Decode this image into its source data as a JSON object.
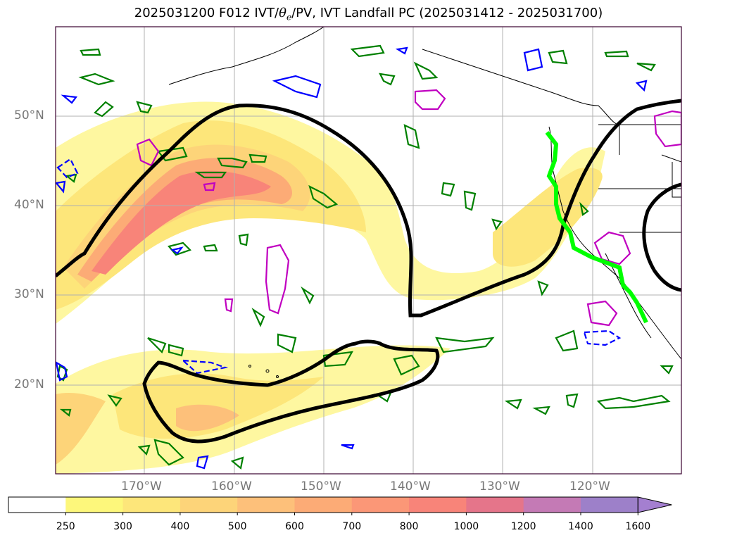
{
  "title": {
    "prefix": "2025031200 F012 IVT/",
    "theta": "θ",
    "theta_sub": "e",
    "suffix": "/PV, IVT Landfall PC (2025031412 - 2025031700)"
  },
  "lat_labels": [
    "50°N",
    "40°N",
    "30°N",
    "20°N"
  ],
  "lon_labels": [
    "170°W",
    "160°W",
    "150°W",
    "140°W",
    "130°W",
    "120°W"
  ],
  "colorbar": {
    "ticks": [
      "250",
      "300",
      "400",
      "500",
      "600",
      "700",
      "800",
      "1000",
      "1200",
      "1400",
      "1600"
    ],
    "colors": [
      "#ffffff",
      "#fdf77b",
      "#fde67a",
      "#fdd479",
      "#fdc07a",
      "#fcab76",
      "#fb9777",
      "#f88479",
      "#e5758a",
      "#c47ab5",
      "#9d80c9"
    ],
    "extend_color": "#a47fd0"
  },
  "legend_colors": {
    "ivt_shading_low": "#fef7a0",
    "ivt_shading_high": "#f5787c",
    "theta_e_contour": "#008000",
    "pv_contour": "#0000ff",
    "landfall_pc": "#000000",
    "landfall_line": "#00ff00",
    "magenta_contour": "#c000c0"
  }
}
